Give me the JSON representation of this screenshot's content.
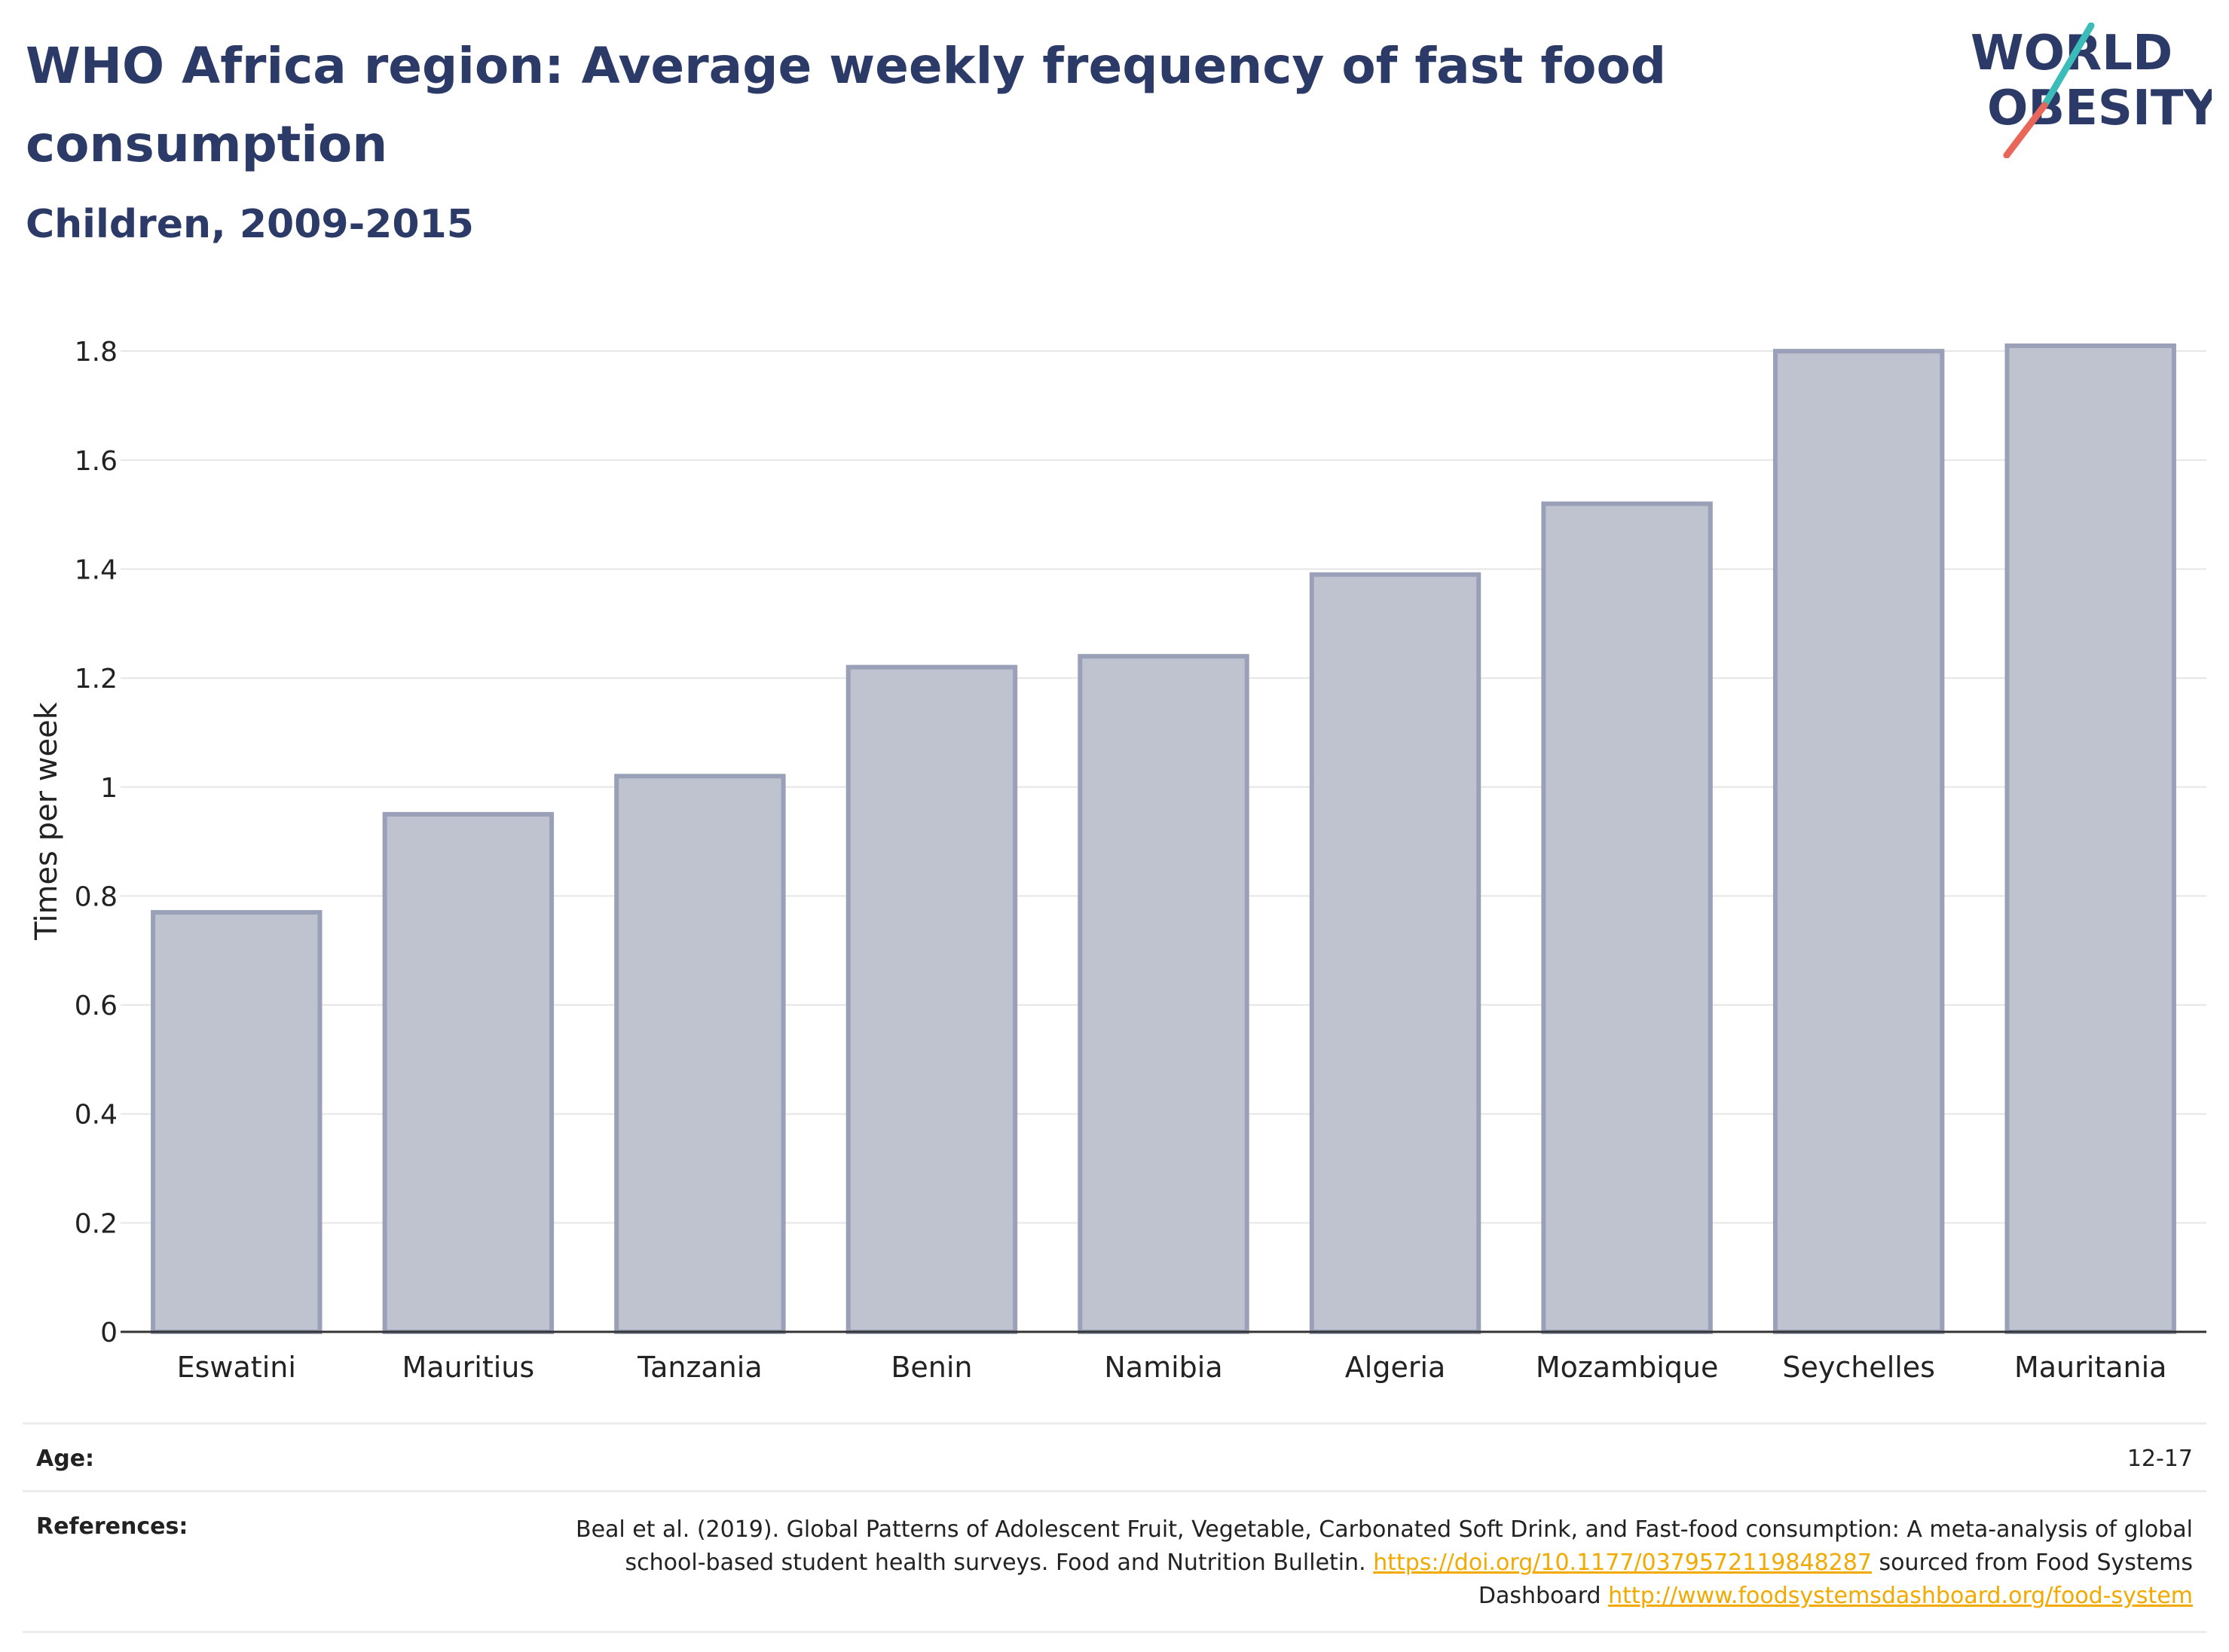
{
  "header": {
    "title": "WHO Africa region: Average weekly frequency of fast food consumption",
    "subtitle": "Children, 2009-2015",
    "logo_line1": "WORLD",
    "logo_line2": "OBESITY"
  },
  "chart_data": {
    "type": "bar",
    "categories": [
      "Eswatini",
      "Mauritius",
      "Tanzania",
      "Benin",
      "Namibia",
      "Algeria",
      "Mozambique",
      "Seychelles",
      "Mauritania"
    ],
    "values": [
      0.77,
      0.95,
      1.02,
      1.22,
      1.24,
      1.39,
      1.52,
      1.8,
      1.81
    ],
    "ylabel": "Times per week",
    "ylim": [
      0,
      1.85
    ],
    "yticks": [
      0,
      0.2,
      0.4,
      0.6,
      0.8,
      1,
      1.2,
      1.4,
      1.6,
      1.8
    ],
    "ytick_labels": [
      "0",
      "0.2",
      "0.4",
      "0.6",
      "0.8",
      "1",
      "1.2",
      "1.4",
      "1.6",
      "1.8"
    ],
    "grid": true,
    "bar_color": "#bfc3d0",
    "bar_edge_color": "#9aa0b8"
  },
  "footer": {
    "age_label": "Age:",
    "age_value": "12-17",
    "references_label": "References:",
    "ref_text_1": "Beal et al. (2019). Global Patterns of Adolescent Fruit, Vegetable, Carbonated Soft Drink, and Fast-food consumption: A meta-analysis of global school-based student health surveys. Food and Nutrition Bulletin.",
    "ref_link_1": "https://doi.org/10.1177/0379572119848287",
    "ref_text_2": "sourced from Food Systems Dashboard",
    "ref_link_2": "http://www.foodsystemsdashboard.org/food-system"
  }
}
